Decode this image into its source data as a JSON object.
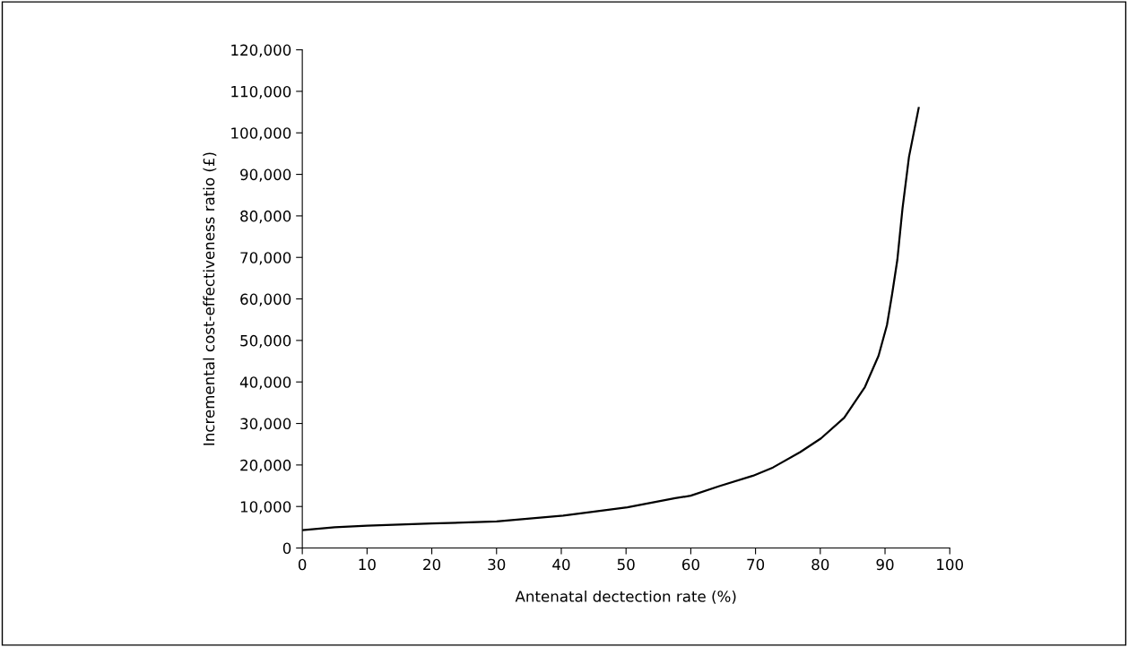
{
  "chart_data": {
    "type": "line",
    "xlabel": "Antenatal dectection rate (%)",
    "ylabel": "Incremental cost-effectiveness ratio (£)",
    "x": [
      0,
      5,
      10,
      20,
      30,
      40.3,
      50.2,
      57.6,
      60,
      64.4,
      69.6,
      72.7,
      76.9,
      80.1,
      83.7,
      86.9,
      89.0,
      90.3,
      91.1,
      91.9,
      92.7,
      93.7,
      95.2
    ],
    "series": [
      {
        "color": "#000000",
        "values": [
          4300,
          5000,
          5400,
          5900,
          6400,
          7800,
          9800,
          12000,
          12600,
          14900,
          17400,
          19400,
          23100,
          26400,
          31400,
          38800,
          46300,
          53700,
          61200,
          69400,
          81800,
          94200,
          106000
        ]
      }
    ],
    "xlim": [
      0,
      100
    ],
    "xticks": [
      0,
      10,
      20,
      30,
      40,
      50,
      60,
      70,
      80,
      90,
      100
    ],
    "ylim": [
      0,
      120000
    ],
    "yticks": [
      0,
      {
        "value": 10000,
        "label": "10,000"
      },
      {
        "value": 20000,
        "label": "20,000"
      },
      {
        "value": 30000,
        "label": "30,000"
      },
      {
        "value": 40000,
        "label": "40,000"
      },
      {
        "value": 50000,
        "label": "50,000"
      },
      {
        "value": 60000,
        "label": "60,000"
      },
      {
        "value": 70000,
        "label": "70,000"
      },
      {
        "value": 80000,
        "label": "80,000"
      },
      {
        "value": 90000,
        "label": "90,000"
      },
      {
        "value": 100000,
        "label": "100,000"
      },
      {
        "value": 110000,
        "label": "110,000"
      },
      {
        "value": 120000,
        "label": "120,000"
      }
    ],
    "grid": false,
    "marker": "none",
    "line_style": "solid"
  }
}
